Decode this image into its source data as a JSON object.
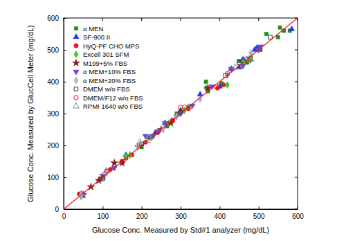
{
  "chart_data": {
    "type": "scatter",
    "xlabel": "Glucose Conc. Measured by Std#1 analyzer (mg/dL)",
    "ylabel": "Glucose Conc. Measured by GlucCell Meter (mg/dL)",
    "xlim": [
      0,
      600
    ],
    "ylim": [
      0,
      600
    ],
    "xticks": [
      0,
      100,
      200,
      300,
      400,
      500,
      600
    ],
    "yticks": [
      0,
      100,
      200,
      300,
      400,
      500,
      600
    ],
    "grid": false,
    "legend": "top-left",
    "series": [
      {
        "name": "α MEN",
        "color": "#1f8f1f",
        "marker": "square",
        "x": [
          45,
          100,
          150,
          200,
          265,
          290,
          320,
          365,
          370,
          405,
          450,
          470,
          480,
          505,
          520,
          550,
          555,
          565,
          580
        ],
        "values": [
          45,
          100,
          150,
          195,
          260,
          300,
          320,
          400,
          370,
          395,
          465,
          460,
          475,
          500,
          550,
          540,
          570,
          560,
          560
        ]
      },
      {
        "name": "SF-900 II",
        "color": "#2b3fd6",
        "marker": "triangle",
        "x": [
          45,
          100,
          160,
          220,
          235,
          260,
          300,
          350,
          400,
          430,
          450,
          460,
          480,
          490,
          495,
          500,
          585
        ],
        "values": [
          48,
          100,
          170,
          225,
          240,
          270,
          310,
          360,
          385,
          440,
          445,
          470,
          470,
          500,
          505,
          505,
          565
        ]
      },
      {
        "name": "HyQ-PF CHO MPS",
        "color": "#e8141e",
        "marker": "circle",
        "x": [
          40,
          95,
          110,
          120,
          150,
          160,
          175,
          210,
          240,
          280,
          300,
          320,
          395,
          410
        ],
        "values": [
          48,
          95,
          120,
          125,
          150,
          160,
          170,
          210,
          240,
          280,
          305,
          315,
          380,
          390
        ]
      },
      {
        "name": "Excell 301 SFM",
        "color": "#3cc83c",
        "marker": "diamond",
        "x": [
          45,
          100,
          160,
          170,
          225,
          270,
          310,
          365,
          420,
          460,
          475,
          480
        ],
        "values": [
          40,
          100,
          165,
          170,
          225,
          270,
          310,
          380,
          390,
          460,
          470,
          470
        ]
      },
      {
        "name": "M199+5% FBS",
        "color": "#8b1a1a",
        "marker": "star",
        "x": [
          50,
          70,
          90,
          130,
          150,
          250,
          275,
          370
        ],
        "values": [
          45,
          70,
          90,
          145,
          145,
          250,
          270,
          380
        ]
      },
      {
        "name": "α MEM+10% FBS",
        "color": "#6a4fc8",
        "marker": "triangle-down",
        "x": [
          50,
          100,
          130,
          190,
          210,
          230,
          245,
          260,
          290,
          300,
          330,
          380,
          430,
          460,
          500,
          505
        ],
        "values": [
          45,
          105,
          130,
          195,
          230,
          230,
          245,
          270,
          290,
          300,
          325,
          385,
          440,
          450,
          500,
          510
        ]
      },
      {
        "name": "α MEM+20% FBS",
        "color": "#b4b4d4",
        "marker": "diamond",
        "x": [
          45,
          110,
          190,
          255,
          290,
          350,
          420,
          480
        ],
        "values": [
          45,
          115,
          195,
          250,
          290,
          345,
          420,
          490
        ]
      },
      {
        "name": "DMEM w/o FBS",
        "color": "#333333",
        "marker": "open-square",
        "x": [
          100,
          200,
          300,
          415,
          450,
          470,
          530
        ],
        "values": [
          95,
          205,
          305,
          420,
          460,
          470,
          540
        ]
      },
      {
        "name": "DMEM/F12 w/o FBS",
        "color": "#e8141e",
        "marker": "open-circle",
        "x": [
          105,
          195,
          300,
          310,
          390,
          420,
          475
        ],
        "values": [
          110,
          200,
          320,
          320,
          385,
          425,
          465
        ]
      },
      {
        "name": "RPMI 1640 w/o FBS",
        "color": "#888888",
        "marker": "open-triangle",
        "x": [
          110,
          195,
          215,
          320,
          440,
          470
        ],
        "values": [
          120,
          210,
          215,
          320,
          445,
          470
        ]
      },
      {
        "type": "line",
        "color": "#e8141e",
        "line_style": "solid",
        "x": [
          0,
          600
        ],
        "values": [
          0,
          600
        ]
      }
    ]
  }
}
